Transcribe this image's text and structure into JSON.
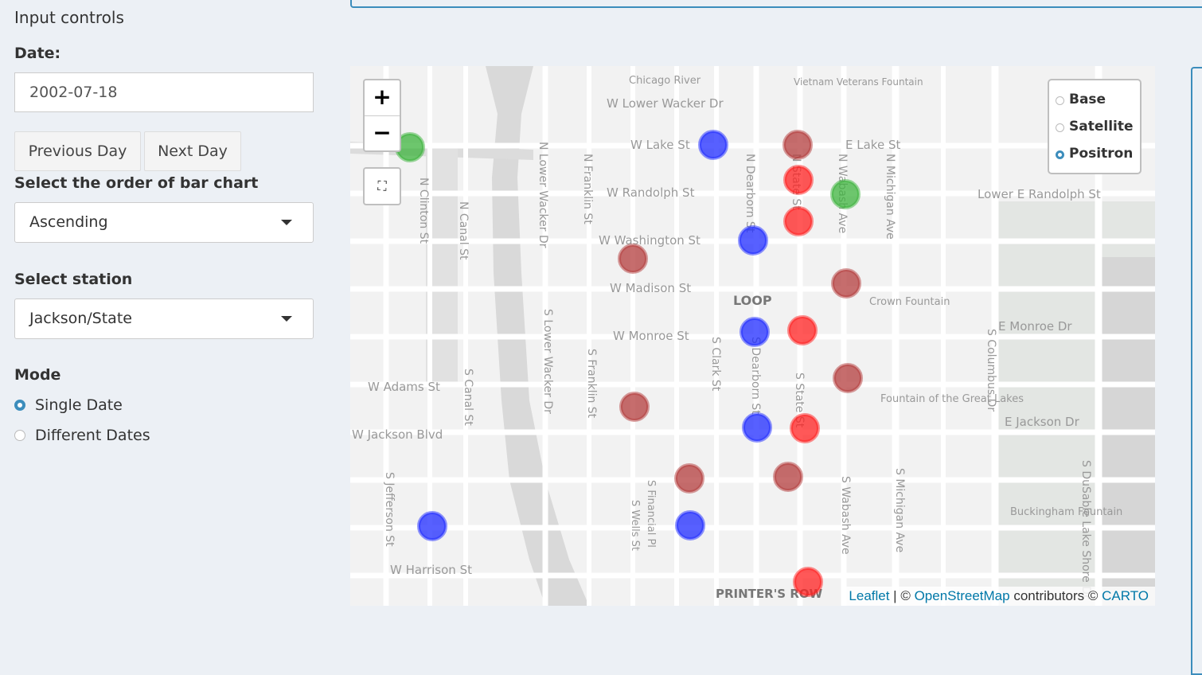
{
  "sidebar": {
    "panel_title": "Input controls",
    "date_label": "Date:",
    "date_value": "2002-07-18",
    "prev_button": "Previous Day",
    "next_button": "Next Day",
    "order_label": "Select the order of bar chart",
    "order_value": "Ascending",
    "station_label": "Select station",
    "station_value": "Jackson/State",
    "mode_label": "Mode",
    "mode_options": [
      "Single Date",
      "Different Dates"
    ],
    "mode_selected": "Single Date"
  },
  "map": {
    "zoom_in": "+",
    "zoom_out": "−",
    "reset_icon": "⛶",
    "layers": [
      "Base",
      "Satellite",
      "Positron"
    ],
    "layer_selected": "Positron",
    "attribution": {
      "leaflet": "Leaflet",
      "sep1": " | © ",
      "osm": "OpenStreetMap",
      "mid": " contributors © ",
      "carto": "CARTO"
    },
    "street_labels": [
      "Chicago River",
      "W Lower Wacker Dr",
      "Vietnam Veterans Fountain",
      "W Lake St",
      "E Lake St",
      "W Randolph St",
      "Lower E Randolph St",
      "W Washington St",
      "W Madison St",
      "LOOP",
      "Crown Fountain",
      "W Monroe St",
      "E Monroe Dr",
      "W Adams St",
      "Fountain of the Great Lakes",
      "W Jackson Blvd",
      "E Jackson Dr",
      "W Harrison St",
      "PRINTER'S ROW",
      "Buckingham Fountain",
      "N Clinton St",
      "N Canal St",
      "N Lower Wacker Dr",
      "N Franklin St",
      "N Dearborn St",
      "N State St",
      "N Wabash Ave",
      "N Michigan Ave",
      "S Canal St",
      "S Lower Wacker Dr",
      "S Franklin St",
      "S Clark St",
      "S Dearborn St",
      "S State St",
      "S Wabash Ave",
      "S Michigan Ave",
      "S Columbus Dr",
      "S DuSable Lake Shore Dr",
      "S Jefferson St",
      "S Wells St",
      "S Financial Pl"
    ],
    "markers": [
      {
        "color": "#3cb33c"
      },
      {
        "color": "#1f2bff"
      },
      {
        "color": "#b33c3c"
      },
      {
        "color": "#ff2020"
      },
      {
        "color": "#3cb33c"
      },
      {
        "color": "#ff2020"
      },
      {
        "color": "#1f2bff"
      },
      {
        "color": "#b33c3c"
      },
      {
        "color": "#b33c3c"
      },
      {
        "color": "#1f2bff"
      },
      {
        "color": "#ff2020"
      },
      {
        "color": "#b33c3c"
      },
      {
        "color": "#b33c3c"
      },
      {
        "color": "#1f2bff"
      },
      {
        "color": "#ff2020"
      },
      {
        "color": "#b33c3c"
      },
      {
        "color": "#b33c3c"
      },
      {
        "color": "#1f2bff"
      },
      {
        "color": "#1f2bff"
      },
      {
        "color": "#ff2020"
      }
    ]
  }
}
